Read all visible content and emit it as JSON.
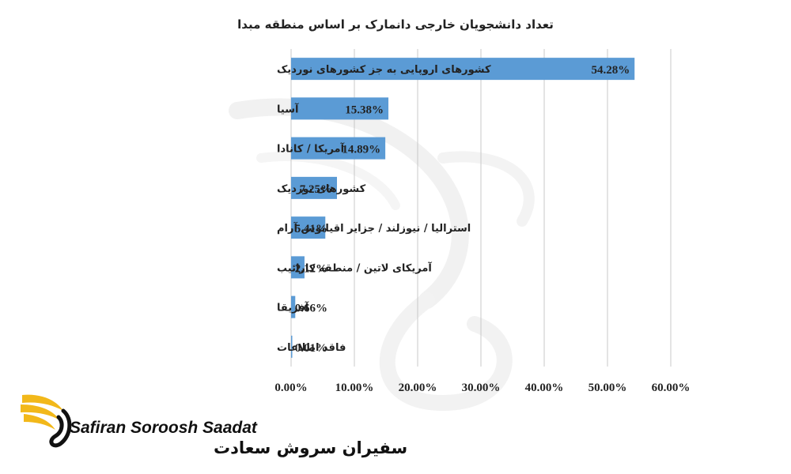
{
  "chart_data": {
    "type": "bar",
    "orientation": "horizontal",
    "title": "تعداد دانشجویان خارجی دانمارک بر اساس منطقه مبدا",
    "categories": [
      "کشورهای اروپایی به جز کشورهای نوردیک",
      "آسیا",
      "آمریکا / کانادا",
      "کشورهای نوردیک",
      "استرالیا / نیوزلند / جزایر اقیانوس آرام",
      "آمریکای لاتین / منطقه کارائیب",
      "آفریقا",
      "فاقد اطلاعات"
    ],
    "values": [
      54.28,
      15.38,
      14.89,
      7.25,
      5.41,
      2.12,
      0.66,
      0.01
    ],
    "value_labels": [
      "54.28%",
      "15.38%",
      "14.89%",
      "7.25%",
      "5.41%",
      "2.12%",
      "0.66%",
      "0.01%"
    ],
    "xlim": [
      0,
      60
    ],
    "xticks": [
      0,
      10,
      20,
      30,
      40,
      50,
      60
    ],
    "xtick_labels": [
      "0.00%",
      "10.00%",
      "20.00%",
      "30.00%",
      "40.00%",
      "50.00%",
      "60.00%"
    ],
    "grid": "vertical",
    "bar_color": "#5b9bd5"
  },
  "logo": {
    "name_en": "Safiran Soroosh Saadat",
    "name_fa": "سفیران سروش سعادت",
    "gold_color": "#f2b81a"
  },
  "watermark": {
    "icon": "swan-logo-watermark"
  }
}
